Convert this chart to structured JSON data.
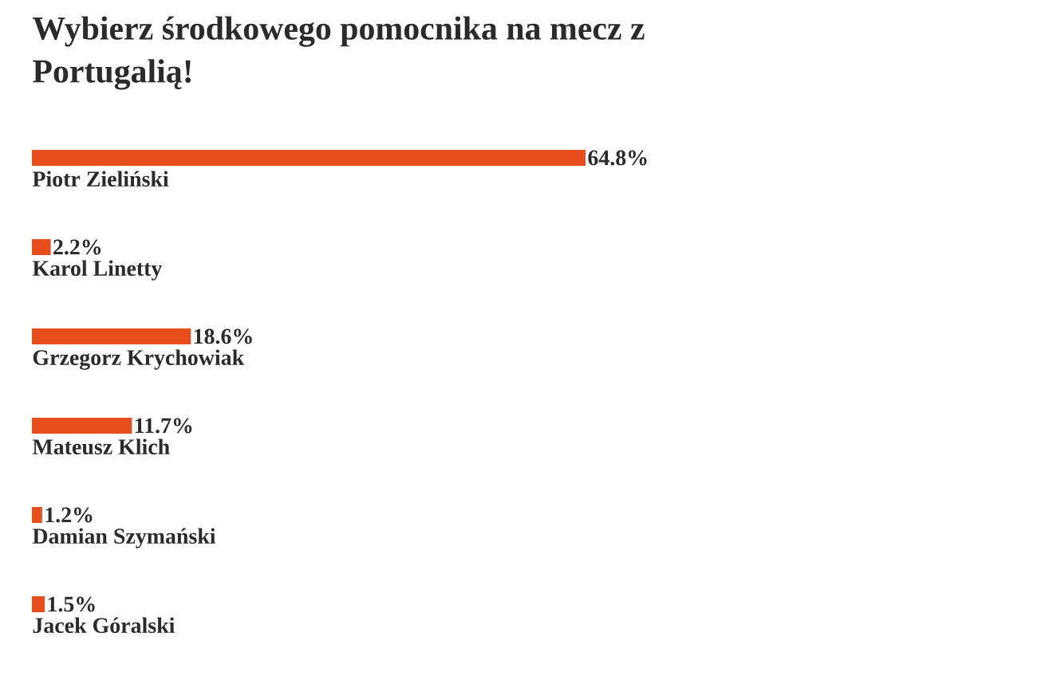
{
  "chart_data": {
    "type": "bar",
    "orientation": "horizontal",
    "title": "Wybierz środkowego pomocnika na mecz z Portugalią!",
    "categories": [
      "Piotr Zieliński",
      "Karol Linetty",
      "Grzegorz Krychowiak",
      "Mateusz Klich",
      "Damian Szymański",
      "Jacek Góralski"
    ],
    "values": [
      64.8,
      2.2,
      18.6,
      11.7,
      1.2,
      1.5
    ],
    "value_labels": [
      "64.8%",
      "2.2%",
      "18.6%",
      "11.7%",
      "1.2%",
      "1.5%"
    ],
    "color": "#e84e1b"
  }
}
